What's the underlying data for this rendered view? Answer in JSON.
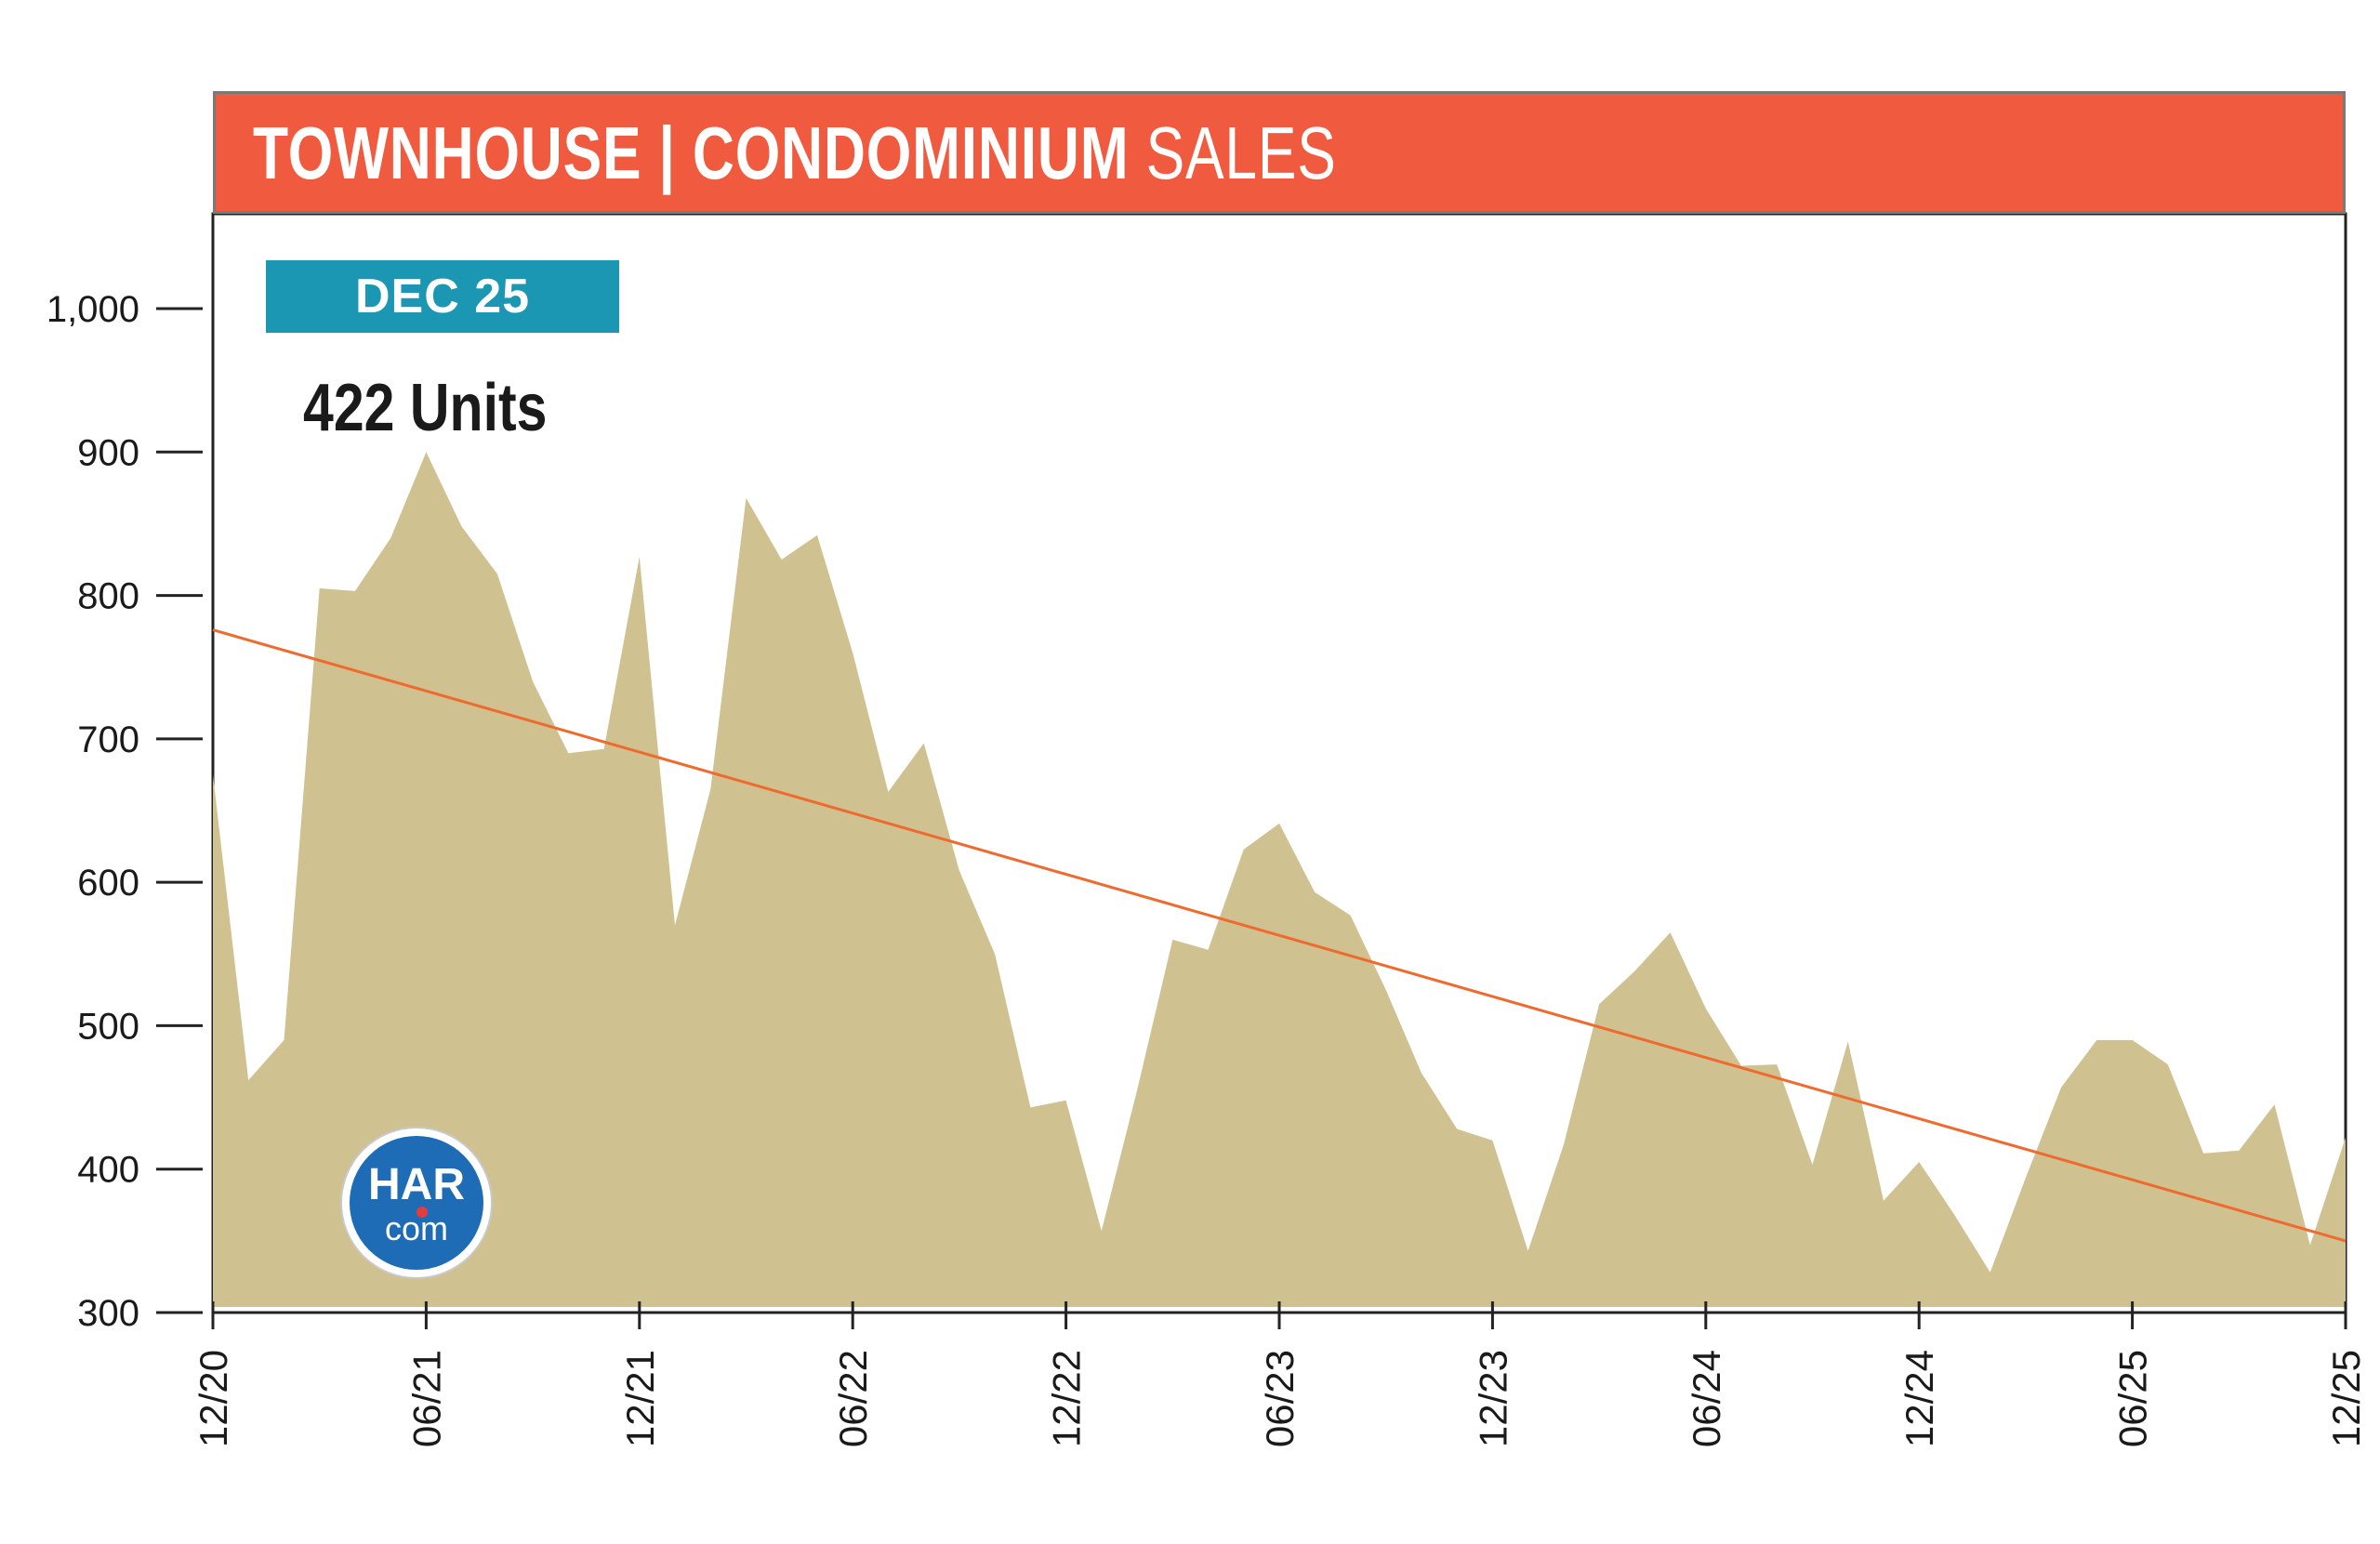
{
  "header": {
    "title_bold": "TOWNHOUSE | CONDOMINIUM",
    "title_light": "SALES"
  },
  "badge": {
    "period": "DEC 25"
  },
  "highlight": {
    "units": "422 Units"
  },
  "logo": {
    "top": "HAR",
    "bottom": "com"
  },
  "colors": {
    "banner": "#f05a3e",
    "badge": "#1b97b3",
    "area_fill": "#cfc190",
    "trend_line": "#ef6a2e",
    "logo": "#1d6cb5"
  },
  "chart_data": {
    "type": "area",
    "ylim": [
      300,
      1000
    ],
    "yticks": [
      300,
      400,
      500,
      600,
      700,
      800,
      900,
      1000
    ],
    "ytick_labels": [
      "300",
      "400",
      "500",
      "600",
      "700",
      "800",
      "900",
      "1,000"
    ],
    "xtick_labels": [
      "12/20",
      "06/21",
      "12/21",
      "06/22",
      "12/22",
      "06/23",
      "12/23",
      "06/24",
      "12/24",
      "06/25",
      "12/25"
    ],
    "x_months_total": 60,
    "values": [
      675,
      462,
      490,
      805,
      803,
      840,
      900,
      848,
      815,
      740,
      690,
      693,
      827,
      570,
      665,
      868,
      825,
      842,
      760,
      663,
      697,
      608,
      550,
      443,
      448,
      357,
      455,
      560,
      553,
      623,
      641,
      593,
      577,
      525,
      467,
      428,
      420,
      343,
      417,
      515,
      538,
      565,
      512,
      472,
      473,
      403,
      489,
      378,
      405,
      368,
      328,
      394,
      457,
      490,
      490,
      473,
      411,
      413,
      445,
      347,
      422
    ],
    "trend": {
      "start": 776,
      "end": 350
    }
  }
}
